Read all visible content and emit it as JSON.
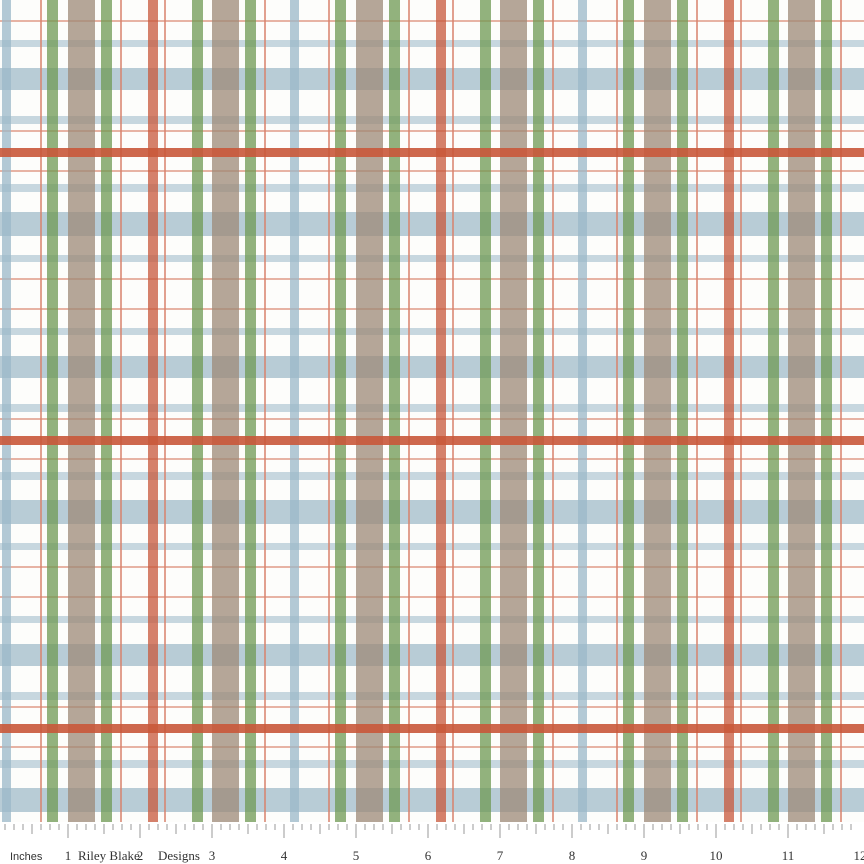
{
  "ruler": {
    "unit": "Inches",
    "brand": [
      "Riley Blake",
      "Designs"
    ],
    "numbers": [
      1,
      2,
      3,
      4,
      5,
      6,
      7,
      8,
      9,
      10,
      11,
      12
    ]
  }
}
